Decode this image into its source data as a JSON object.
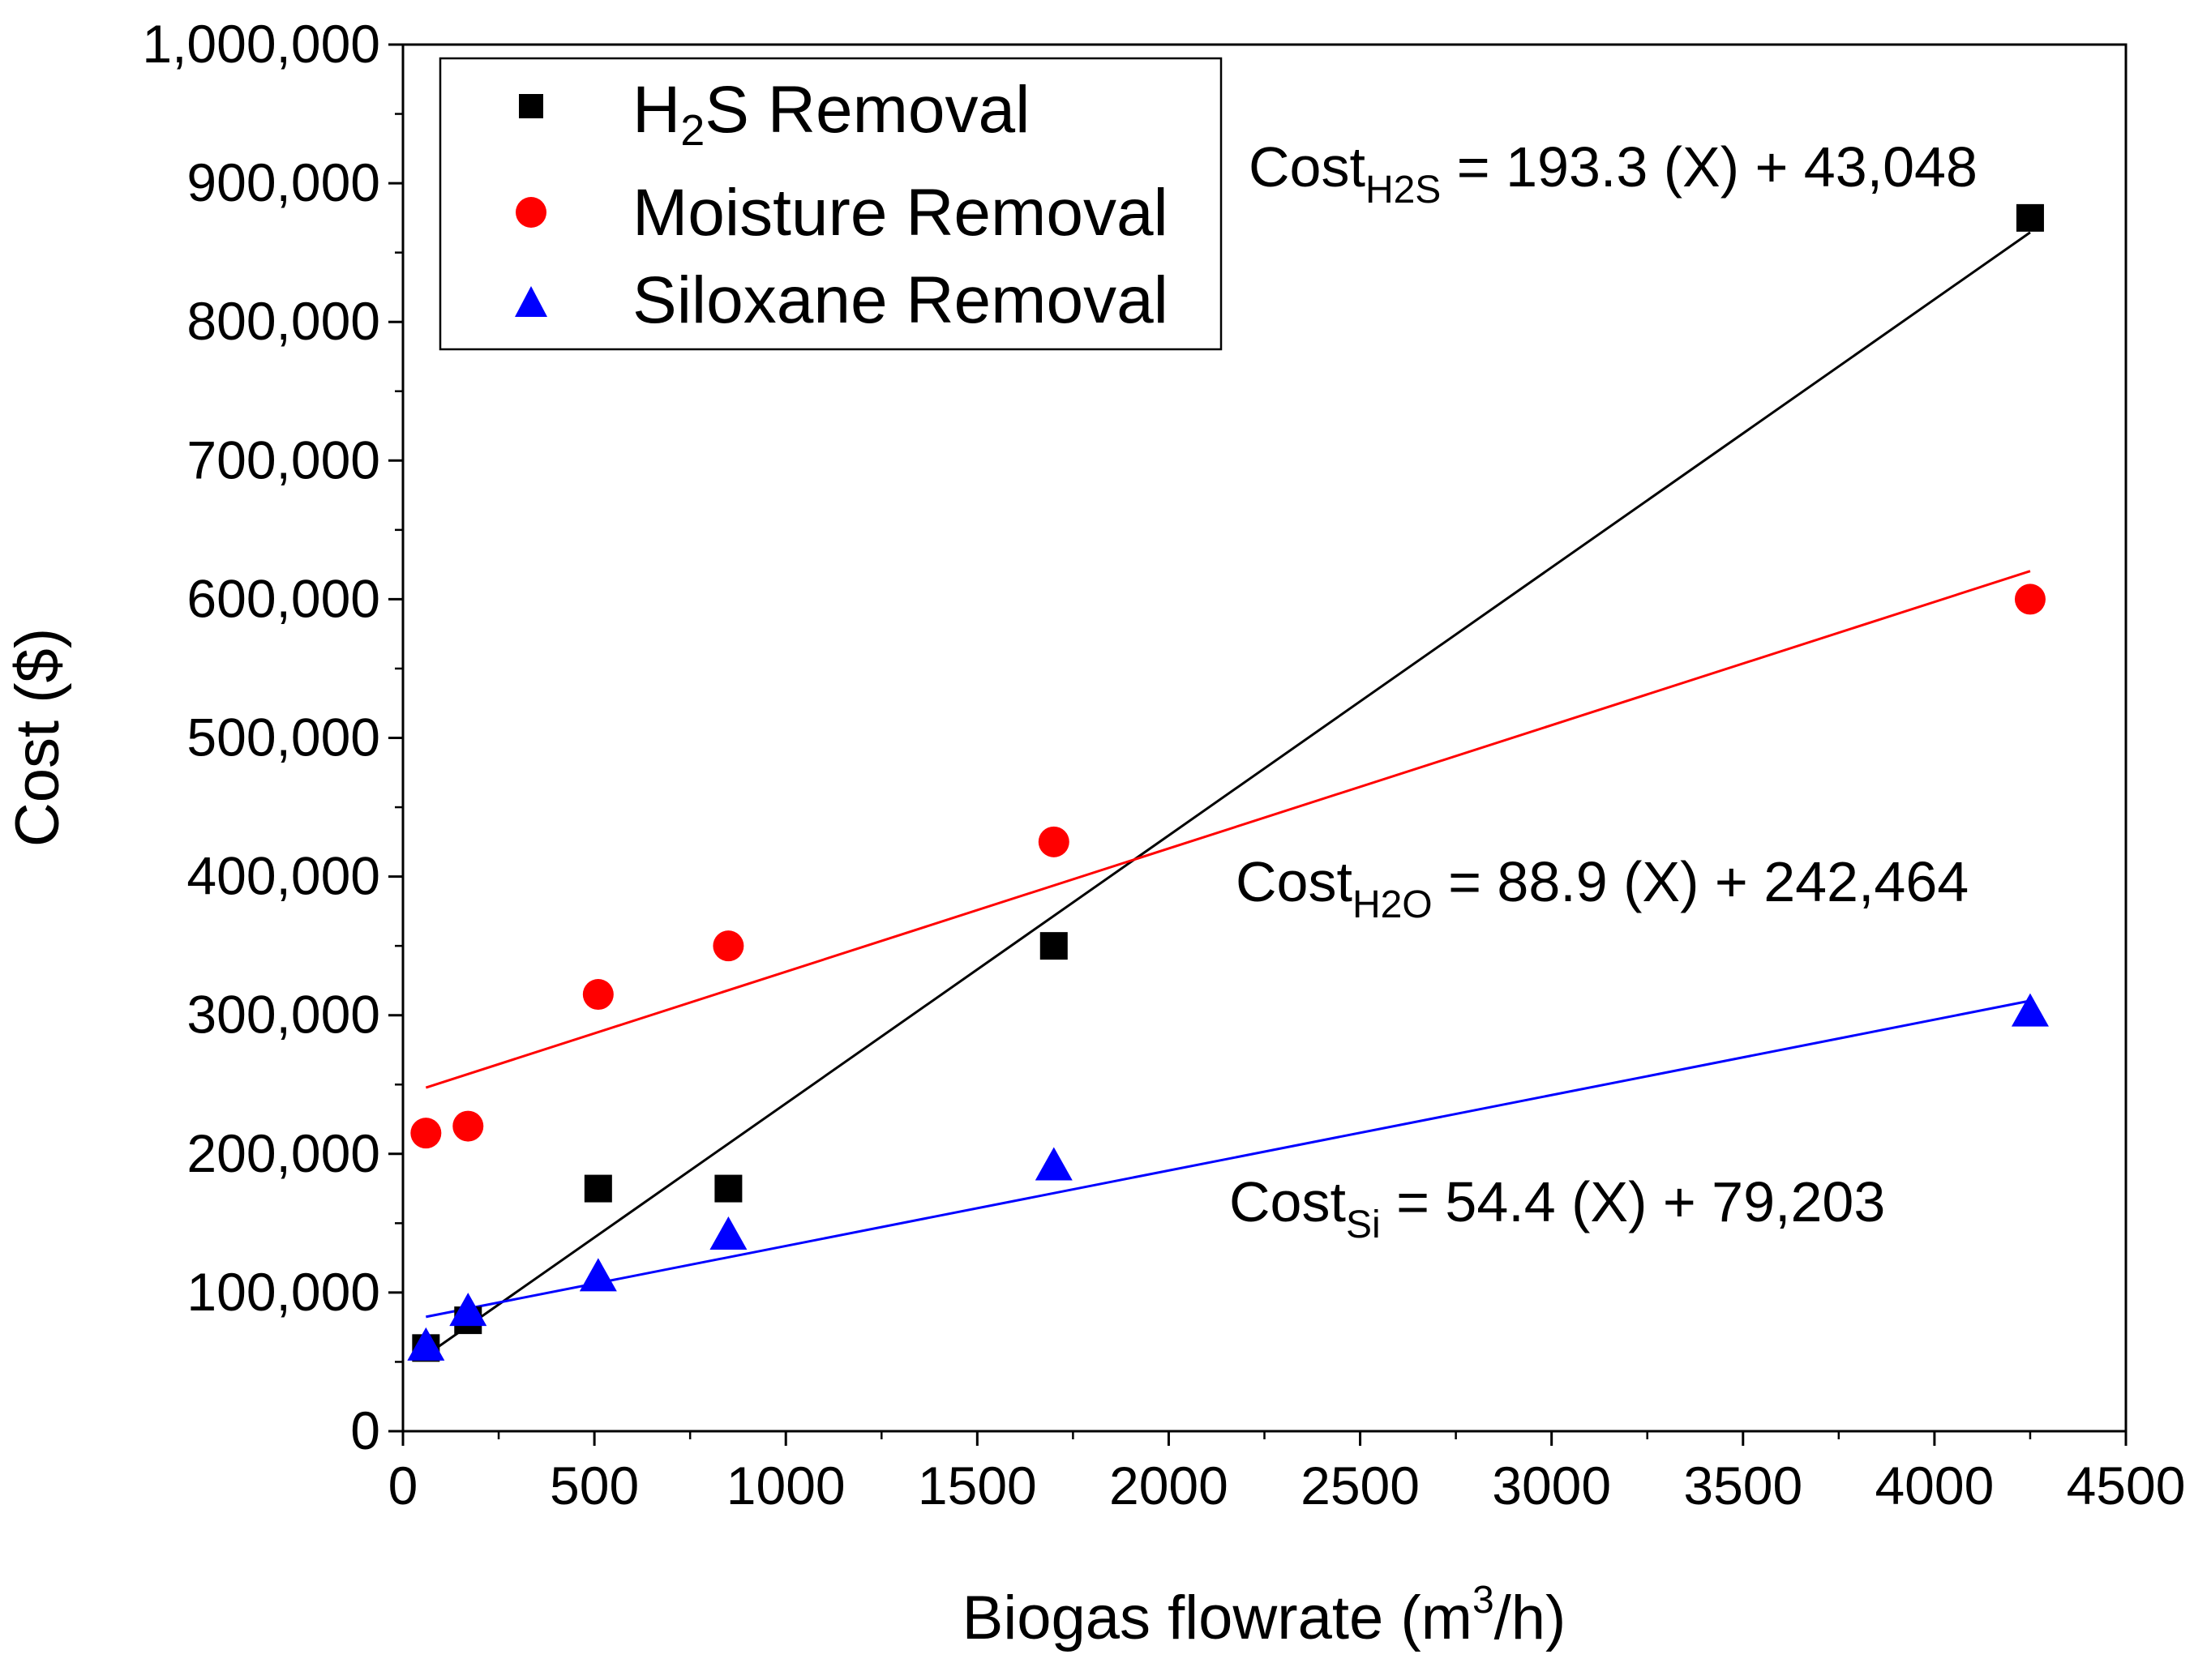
{
  "chart_data": {
    "type": "scatter",
    "xlabel": "Biogas flowrate (m",
    "xlabel_superscript": "3",
    "xlabel_suffix": "/h)",
    "ylabel": "Cost ($)",
    "xlim": [
      0,
      4500
    ],
    "ylim": [
      0,
      1000000
    ],
    "x_ticks": [
      0,
      500,
      1000,
      1500,
      2000,
      2500,
      3000,
      3500,
      4000,
      4500
    ],
    "x_tick_labels": [
      "0",
      "500",
      "1000",
      "1500",
      "2000",
      "2500",
      "3000",
      "3500",
      "4000",
      "4500"
    ],
    "y_ticks": [
      0,
      100000,
      200000,
      300000,
      400000,
      500000,
      600000,
      700000,
      800000,
      900000,
      1000000
    ],
    "y_tick_labels": [
      "0",
      "100,000",
      "200,000",
      "300,000",
      "400,000",
      "500,000",
      "600,000",
      "700,000",
      "800,000",
      "900,000",
      "1,000,000"
    ],
    "grid": false,
    "legend_position": "top-left",
    "series": [
      {
        "id": "h2s",
        "name": "H2S Removal",
        "legend_main": "H",
        "legend_sub": "2",
        "legend_rest": "S Removal",
        "marker": "square",
        "color": "#000000",
        "x": [
          60,
          170,
          510,
          850,
          1700,
          4250
        ],
        "y": [
          60000,
          80000,
          175000,
          175000,
          350000,
          875000
        ],
        "fit": {
          "slope": 193.3,
          "intercept": 43048,
          "x_range": [
            60,
            4250
          ]
        }
      },
      {
        "id": "moisture",
        "name": "Moisture Removal",
        "legend_main": "Moisture Removal",
        "legend_sub": "",
        "legend_rest": "",
        "marker": "circle",
        "color": "#ff0000",
        "x": [
          60,
          170,
          510,
          850,
          1700,
          4250
        ],
        "y": [
          215000,
          220000,
          315000,
          350000,
          425000,
          600000
        ],
        "fit": {
          "slope": 88.9,
          "intercept": 242464,
          "x_range": [
            60,
            4250
          ]
        }
      },
      {
        "id": "siloxane",
        "name": "Siloxane Removal",
        "legend_main": "Siloxane Removal",
        "legend_sub": "",
        "legend_rest": "",
        "marker": "triangle",
        "color": "#0000ff",
        "x": [
          60,
          170,
          510,
          850,
          1700,
          4250
        ],
        "y": [
          62000,
          87000,
          112000,
          142000,
          192000,
          303000
        ],
        "fit": {
          "slope": 54.4,
          "intercept": 79203,
          "x_range": [
            60,
            4250
          ]
        }
      }
    ],
    "annotations": [
      {
        "id": "eq-h2s",
        "series": "h2s",
        "prefix": "Cost",
        "sub": "H2S",
        "suffix": " = 193.3 (X) + 43,048"
      },
      {
        "id": "eq-h2o",
        "series": "moisture",
        "prefix": "Cost",
        "sub": "H2O",
        "suffix": " = 88.9 (X) + 242,464"
      },
      {
        "id": "eq-si",
        "series": "siloxane",
        "prefix": "Cost",
        "sub": "Si",
        "suffix": " = 54.4 (X) + 79,203"
      }
    ]
  }
}
